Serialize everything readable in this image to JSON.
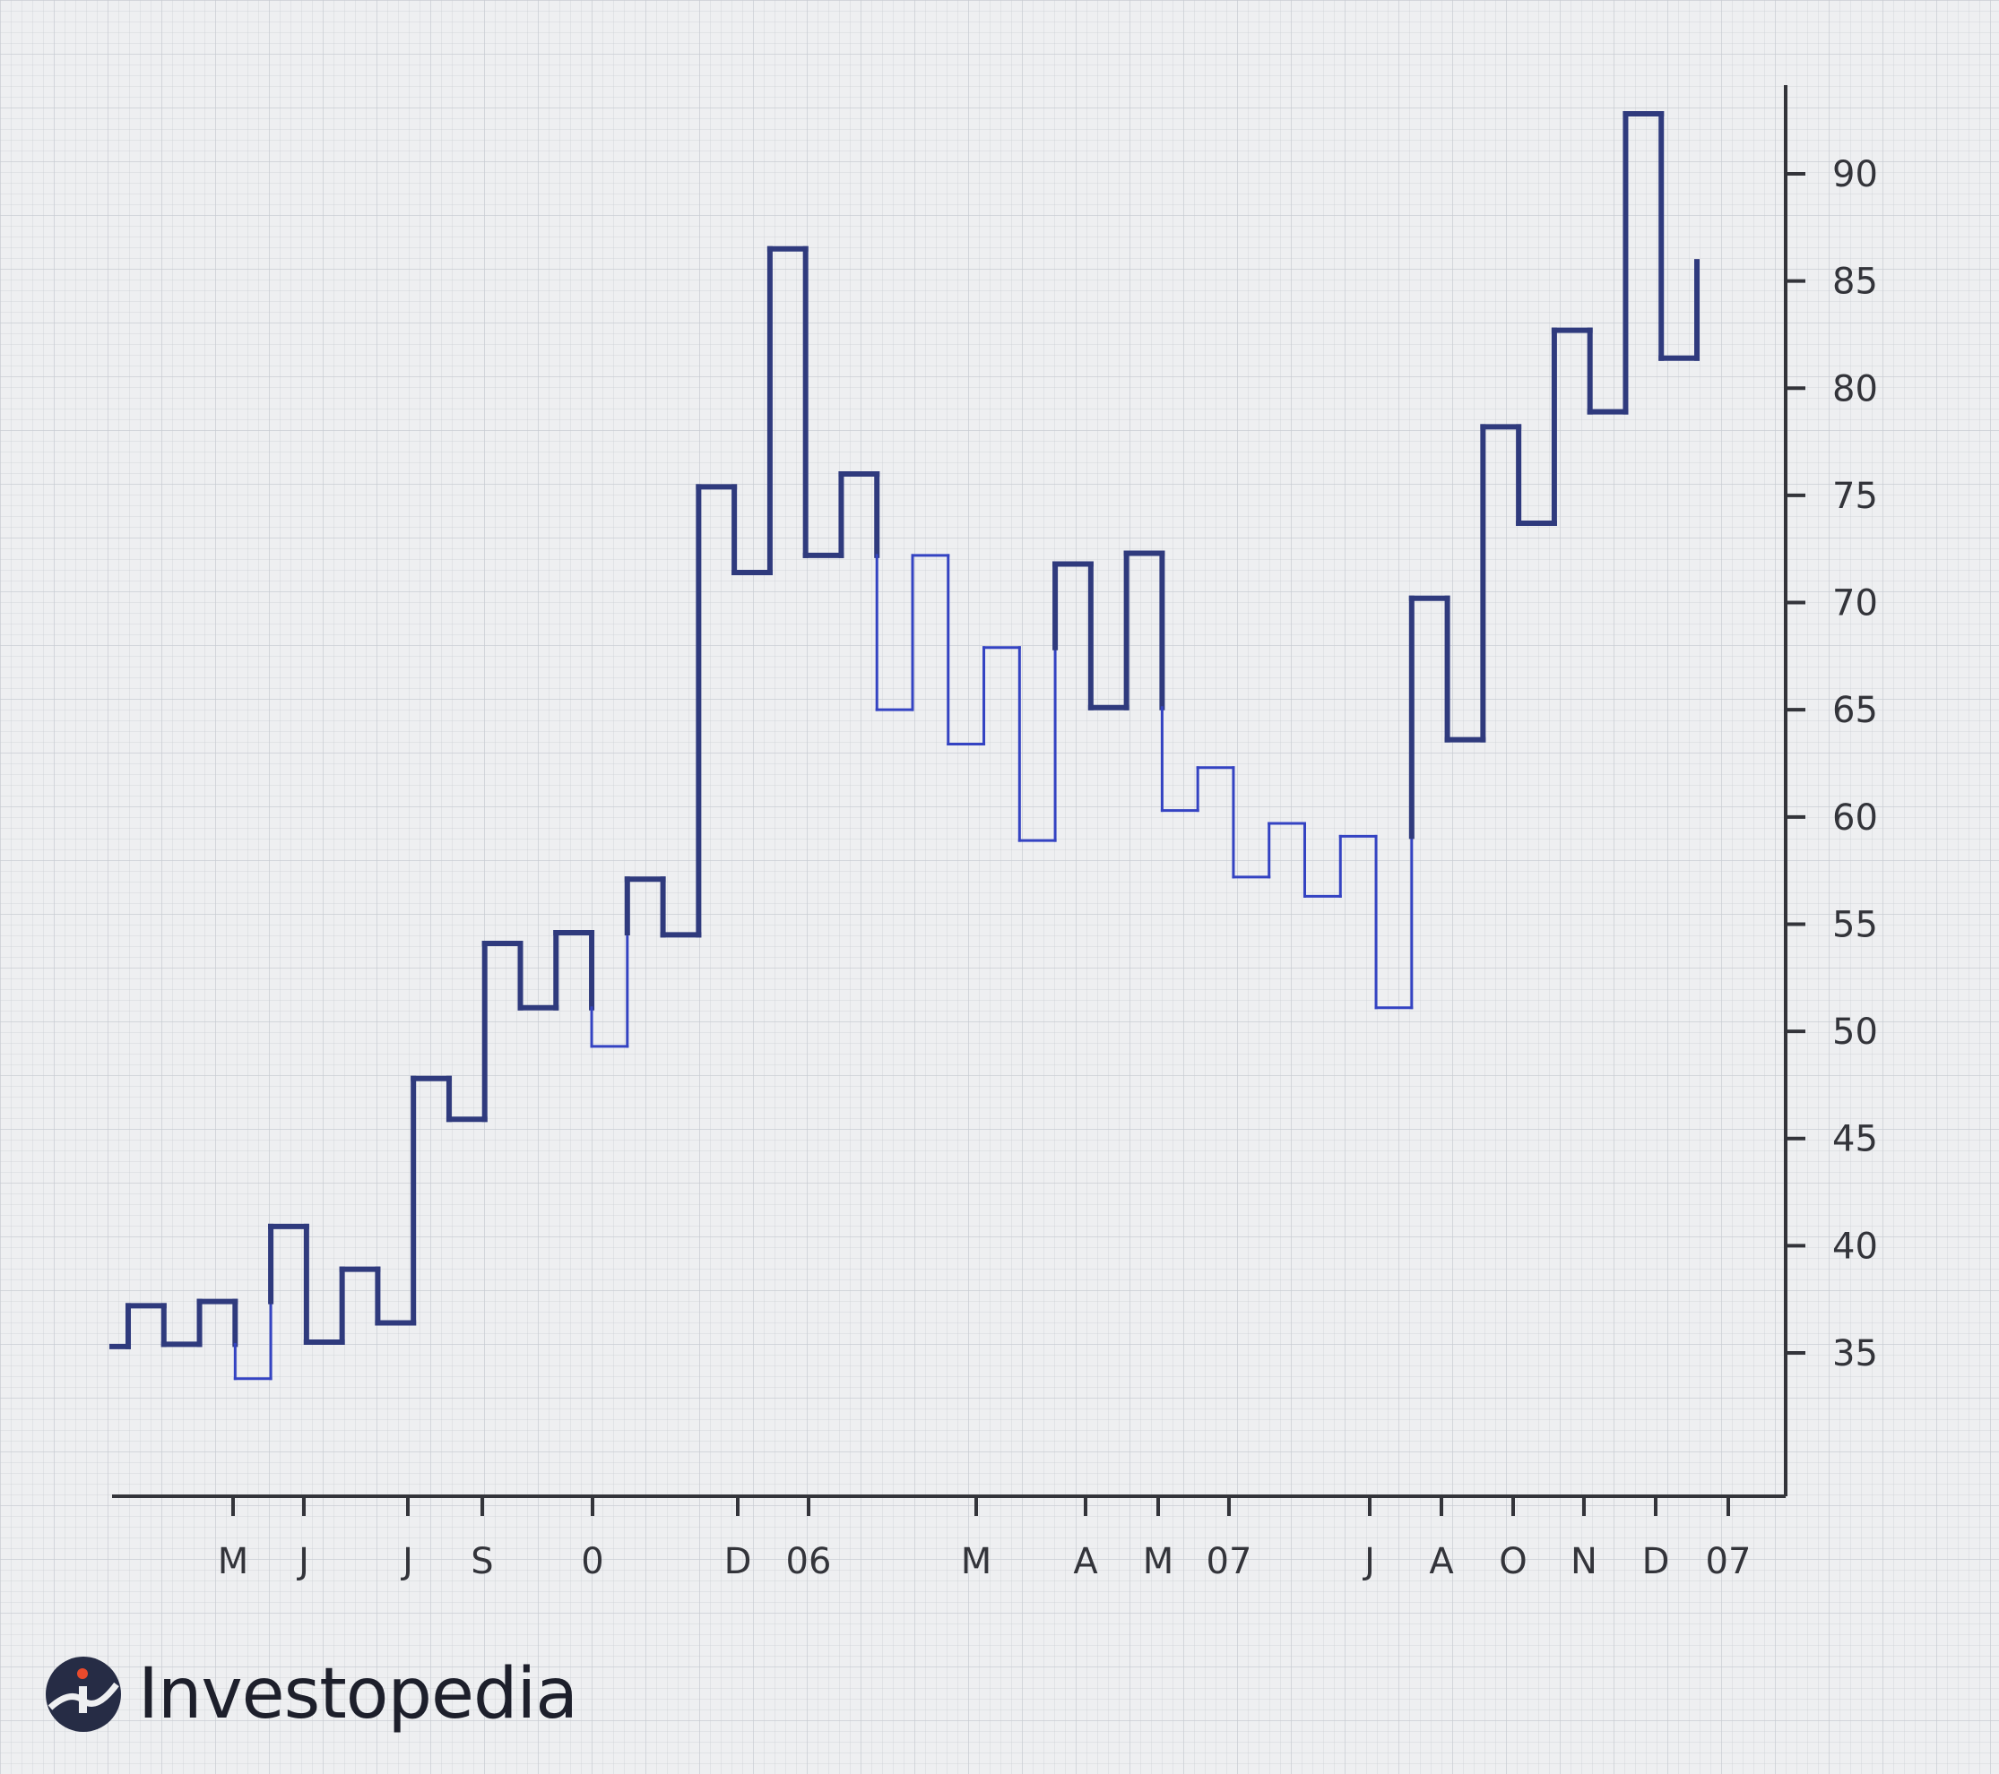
{
  "chart_data": {
    "type": "line",
    "style": "step-kagi",
    "grid": true,
    "ylim": [
      29,
      96
    ],
    "y_ticks": [
      35,
      40,
      45,
      50,
      55,
      60,
      65,
      70,
      75,
      80,
      85,
      90
    ],
    "x_tick_labels": [
      "M",
      "J",
      "J",
      "S",
      "0",
      "D",
      "06",
      "M",
      "A",
      "M",
      "07",
      "J",
      "A",
      "O",
      "N",
      "D",
      "07"
    ],
    "series": [
      {
        "values": [
          35.3,
          37.2,
          35.4,
          37.4,
          33.8,
          40.9,
          35.5,
          38.9,
          36.4,
          47.8,
          45.9,
          54.1,
          51.1,
          54.6,
          49.3,
          57.1,
          54.5,
          75.4,
          71.4,
          86.5,
          72.2,
          76.0,
          65.0,
          72.2,
          63.4,
          67.9,
          58.9,
          71.8,
          65.1,
          72.3,
          60.3,
          62.3,
          57.2,
          59.7,
          56.3,
          59.1,
          51.1,
          70.2,
          63.6,
          78.2,
          73.7,
          82.7,
          78.9,
          92.8,
          81.4,
          85.9
        ]
      }
    ],
    "colors": {
      "thick": "#2f3a7d",
      "thin": "#3443c2",
      "axis": "#33343a"
    }
  },
  "brand": {
    "name": "Investopedia"
  }
}
